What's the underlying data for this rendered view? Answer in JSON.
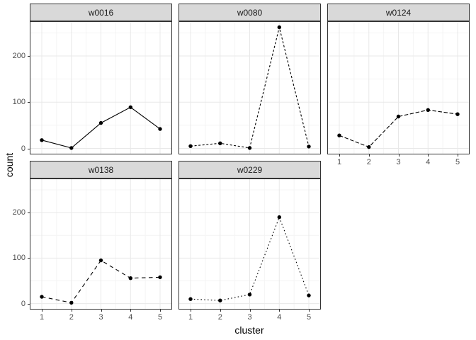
{
  "chart_data": {
    "type": "line",
    "faceted": true,
    "title": "",
    "xlabel": "cluster",
    "ylabel": "count",
    "x": [
      1,
      2,
      3,
      4,
      5
    ],
    "xticks": [
      "1",
      "2",
      "3",
      "4",
      "5"
    ],
    "yticks": [
      "0",
      "100",
      "200"
    ],
    "ytick_values": [
      0,
      100,
      200
    ],
    "yminor_values": [
      50,
      150,
      250
    ],
    "xminor_values": [
      1.5,
      2.5,
      3.5,
      4.5
    ],
    "ylim": [
      -13,
      275
    ],
    "xlim": [
      1,
      5
    ],
    "grid": "major and minor, light grey on white",
    "legend": "none",
    "series": [
      {
        "name": "w0016",
        "linetype": "solid",
        "values": [
          18,
          1,
          55,
          89,
          42
        ]
      },
      {
        "name": "w0080",
        "linetype": "22",
        "values": [
          5,
          11,
          1,
          262,
          4
        ]
      },
      {
        "name": "w0124",
        "linetype": "42",
        "values": [
          28,
          3,
          69,
          83,
          74
        ]
      },
      {
        "name": "w0138",
        "linetype": "44",
        "values": [
          15,
          2,
          95,
          56,
          58
        ]
      },
      {
        "name": "w0229",
        "linetype": "13",
        "values": [
          10,
          7,
          20,
          190,
          18
        ]
      }
    ],
    "colors": {
      "line": "#000000",
      "point": "#000000",
      "strip_bg": "#d9d9d9",
      "strip_border": "#333333",
      "panel_border": "#333333",
      "panel_bg": "#ffffff",
      "grid_major": "#e8e8e8",
      "grid_minor": "#f4f4f4",
      "tick": "#333333",
      "tick_text": "#4d4d4d"
    }
  }
}
